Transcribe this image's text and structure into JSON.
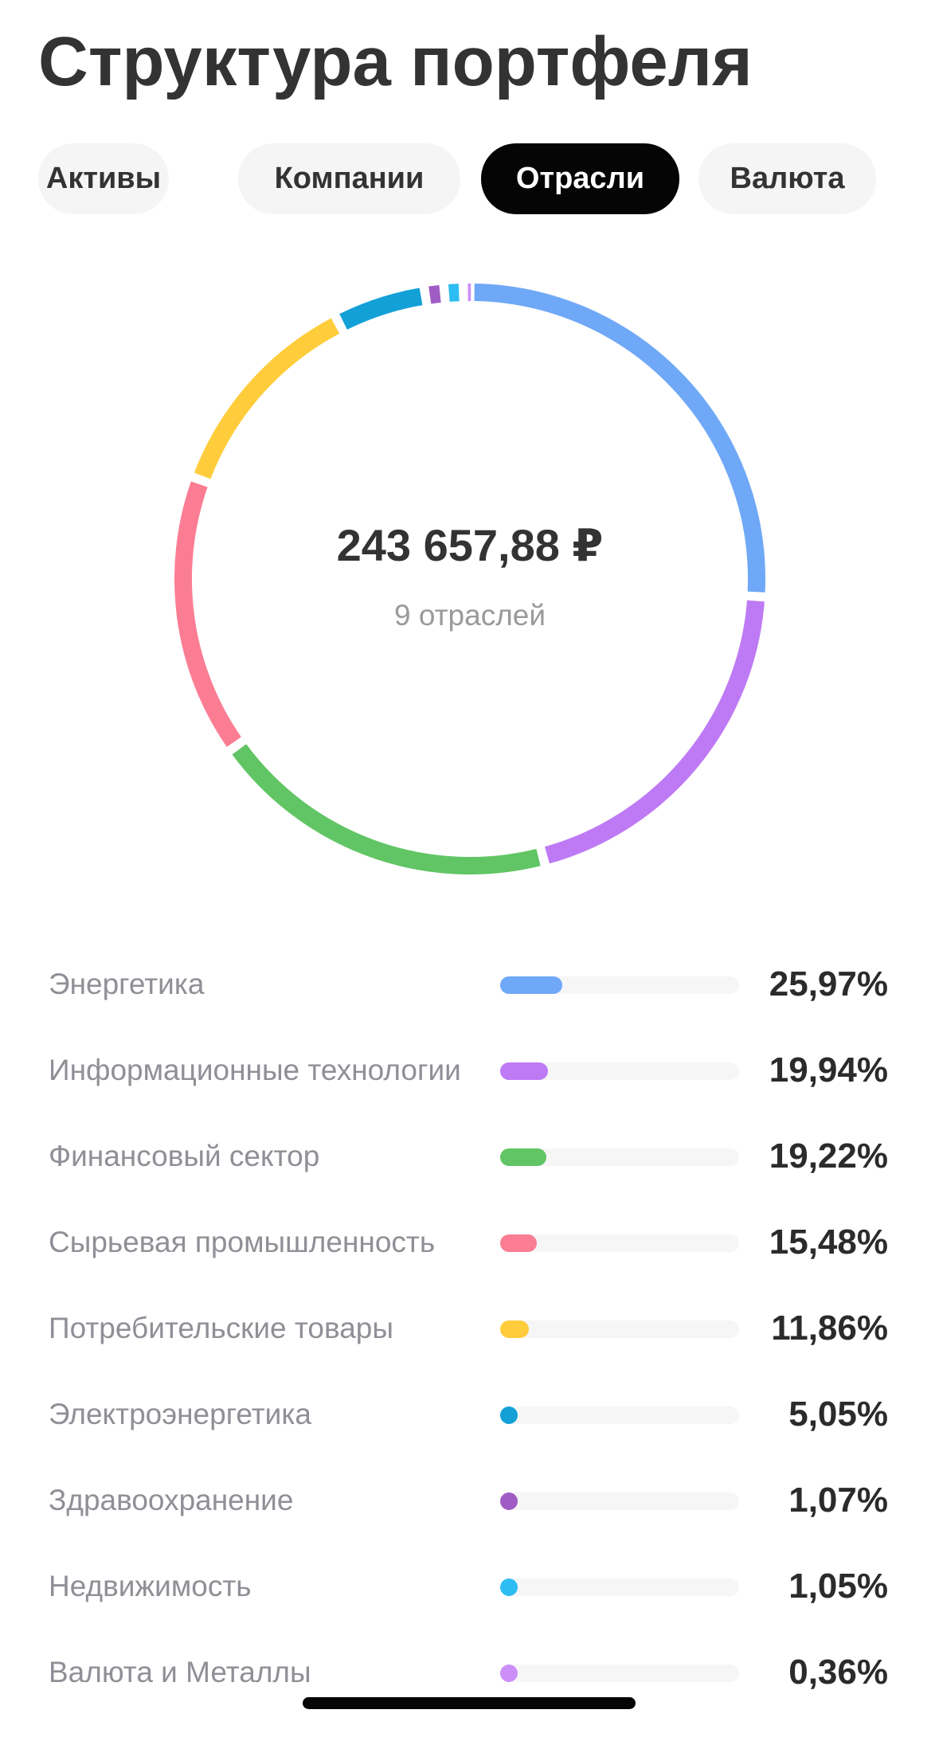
{
  "title": "Структура портфеля",
  "tabs": [
    {
      "label": "Активы",
      "active": false
    },
    {
      "label": "Компании",
      "active": false
    },
    {
      "label": "Отрасли",
      "active": true
    },
    {
      "label": "Валюта",
      "active": false
    }
  ],
  "summary": {
    "total": "243 657,88 ₽",
    "count_label": "9 отраслей"
  },
  "chart_data": {
    "type": "pie",
    "style": "donut",
    "total_label": "243 657,88 ₽",
    "subtitle": "9 отраслей",
    "categories": [
      "Энергетика",
      "Информационные технологии",
      "Финансовый сектор",
      "Сырьевая промышленность",
      "Потребительские товары",
      "Электроэнергетика",
      "Здравоохранение",
      "Недвижимость",
      "Валюта и Металлы"
    ],
    "values": [
      25.97,
      19.94,
      19.22,
      15.48,
      11.86,
      5.05,
      1.07,
      1.05,
      0.36
    ],
    "value_labels": [
      "25,97%",
      "19,94%",
      "19,22%",
      "15,48%",
      "11,86%",
      "5,05%",
      "1,07%",
      "1,05%",
      "0,36%"
    ],
    "colors": [
      "#6fa8f7",
      "#be7af4",
      "#61c565",
      "#fb7d93",
      "#ffcd3c",
      "#13a0d7",
      "#a05cc4",
      "#2dbdf2",
      "#cc8ff8"
    ],
    "legend_placement": "bottom"
  }
}
